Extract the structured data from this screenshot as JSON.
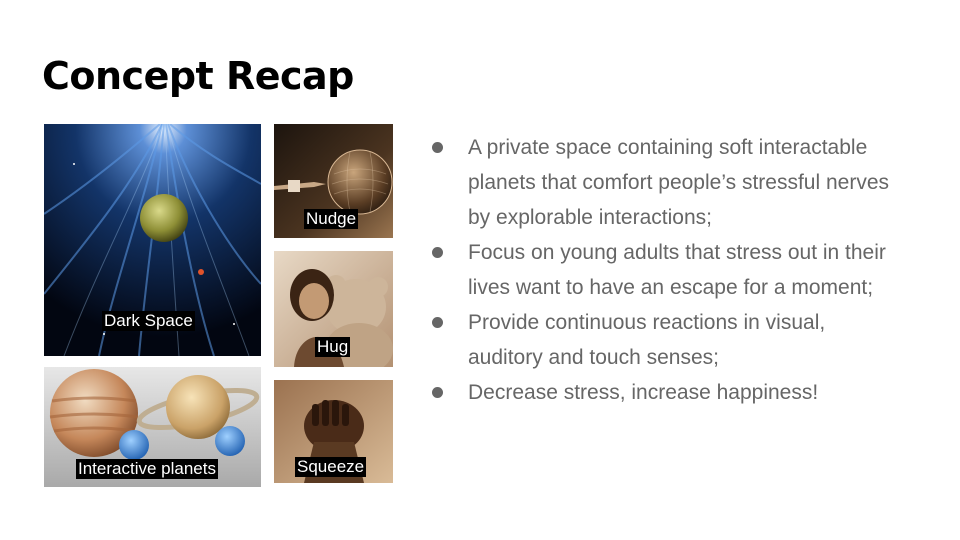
{
  "slide": {
    "title": "Concept Recap"
  },
  "images": {
    "dark_space": {
      "caption": "Dark Space"
    },
    "nudge": {
      "caption": "Nudge"
    },
    "hug": {
      "caption": "Hug"
    },
    "interactive_planets": {
      "caption": "Interactive planets"
    },
    "squeeze": {
      "caption": "Squeeze"
    }
  },
  "bullets": [
    {
      "text": "A private space containing soft interactable planets that comfort people’s stressful nerves by explorable interactions;"
    },
    {
      "text": "Focus on young adults that stress out in their lives want to have an escape for a moment;"
    },
    {
      "text": "Provide continuous reactions in visual, auditory and touch senses;"
    },
    {
      "text": "Decrease stress, increase happiness!"
    }
  ],
  "colors": {
    "bullet_text": "#666666",
    "title_text": "#000000",
    "caption_bg": "#000000",
    "caption_text": "#ffffff"
  }
}
